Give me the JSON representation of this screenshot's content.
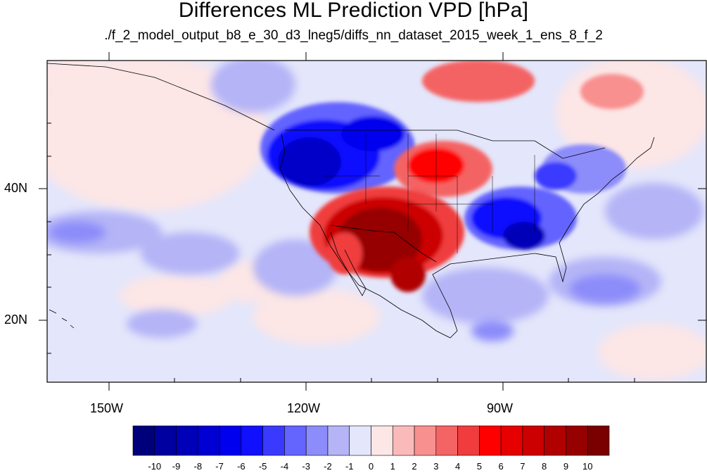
{
  "title": "Differences ML Prediction VPD [hPa]",
  "subtitle": "./f_2_model_output_b8_e_30_d3_lneg5/diffs_nn_dataset_2015_week_1_ens_8_f_2",
  "map": {
    "lat_labels": [
      "40N",
      "20N"
    ],
    "lon_labels": [
      "150W",
      "120W",
      "90W"
    ],
    "ocean_color": "#e4e6fb",
    "land_outline_color": "#000000"
  },
  "colorbar": {
    "labels": [
      "-10",
      "-9",
      "-8",
      "-7",
      "-6",
      "-5",
      "-4",
      "-3",
      "-2",
      "-1",
      "0",
      "1",
      "2",
      "3",
      "4",
      "5",
      "6",
      "7",
      "8",
      "9",
      "10"
    ],
    "colors": [
      "#00007a",
      "#00009e",
      "#0000b8",
      "#0000d4",
      "#0000ee",
      "#1010ff",
      "#3a3aff",
      "#6464ff",
      "#8c8cfa",
      "#b4b4f7",
      "#e4e6fb",
      "#fce6e6",
      "#fbbaba",
      "#f89090",
      "#f46464",
      "#f03c3c",
      "#ff0000",
      "#e60000",
      "#cc0000",
      "#b00000",
      "#960000",
      "#7a0000"
    ]
  }
}
